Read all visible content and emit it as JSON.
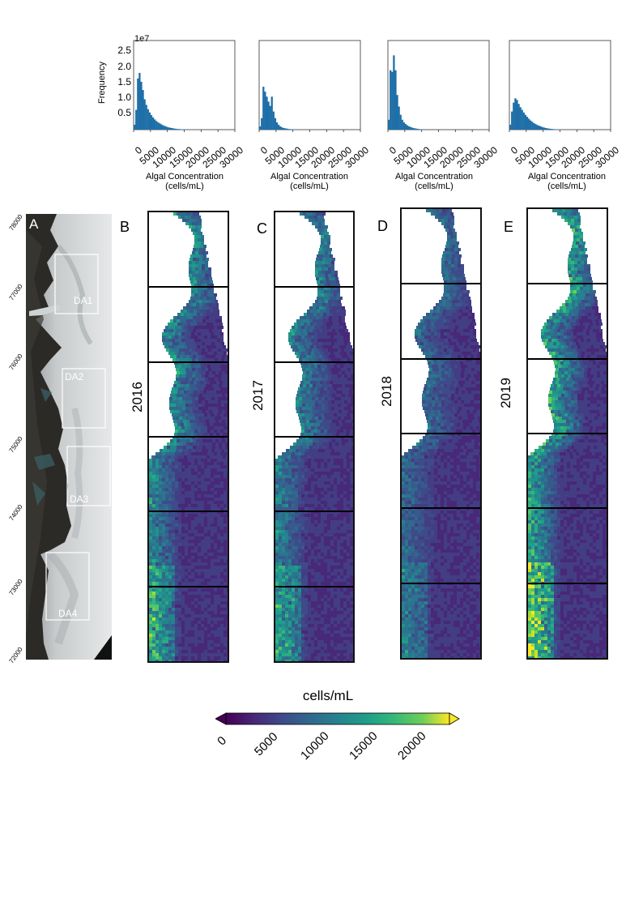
{
  "histograms": {
    "scale_label": "1e7",
    "ylabel": "Frequency",
    "xlabel_line1": "Algal Concentration",
    "xlabel_line2": "(cells/mL)",
    "yticks": [
      "2.5",
      "2.0",
      "1.5",
      "1.0",
      "0.5"
    ],
    "xticks": [
      "0",
      "5000",
      "10000",
      "15000",
      "20000",
      "25000",
      "30000"
    ],
    "bar_color": "#1f6fa8"
  },
  "chart_data": [
    {
      "type": "bar",
      "title": "",
      "xlabel": "Algal Concentration (cells/mL)",
      "ylabel": "Frequency",
      "xlim": [
        0,
        30000
      ],
      "ylim": [
        0,
        27000000.0
      ],
      "bin_width": 500,
      "bin_start": 0,
      "values": [
        0.15,
        0.6,
        1.55,
        1.72,
        1.45,
        1.2,
        0.92,
        0.75,
        0.62,
        0.52,
        0.44,
        0.37,
        0.31,
        0.26,
        0.22,
        0.19,
        0.16,
        0.13,
        0.11,
        0.09,
        0.07,
        0.06,
        0.05,
        0.04,
        0.03,
        0.025,
        0.02,
        0.015,
        0.012,
        0.01,
        0.008,
        0.006,
        0.005,
        0.004,
        0.003,
        0.002,
        0.002,
        0.001,
        0.001,
        0.001
      ]
    },
    {
      "type": "bar",
      "title": "",
      "xlabel": "Algal Concentration (cells/mL)",
      "ylabel": "",
      "xlim": [
        0,
        30000
      ],
      "ylim": [
        0,
        27000000.0
      ],
      "bin_width": 500,
      "bin_start": 0,
      "values": [
        0.1,
        0.35,
        1.3,
        1.15,
        1.0,
        0.85,
        0.72,
        1.0,
        0.55,
        0.35,
        0.22,
        0.15,
        0.1,
        0.07,
        0.05,
        0.04,
        0.03,
        0.02,
        0.015,
        0.01,
        0.008,
        0.006,
        0.004,
        0.003,
        0.002,
        0.001
      ]
    },
    {
      "type": "bar",
      "title": "",
      "xlabel": "Algal Concentration (cells/mL)",
      "ylabel": "",
      "xlim": [
        0,
        30000
      ],
      "ylim": [
        0,
        27000000.0
      ],
      "bin_width": 500,
      "bin_start": 0,
      "values": [
        0.3,
        1.8,
        1.75,
        2.25,
        1.8,
        1.05,
        0.7,
        0.45,
        0.3,
        0.22,
        0.17,
        0.13,
        0.1,
        0.08,
        0.06,
        0.045,
        0.035,
        0.025,
        0.018,
        0.012,
        0.008,
        0.005,
        0.003,
        0.002,
        0.001
      ]
    },
    {
      "type": "bar",
      "title": "",
      "xlabel": "Algal Concentration (cells/mL)",
      "ylabel": "",
      "xlim": [
        0,
        30000
      ],
      "ylim": [
        0,
        27000000.0
      ],
      "bin_width": 500,
      "bin_start": 0,
      "values": [
        0.15,
        0.55,
        0.82,
        0.95,
        0.9,
        0.78,
        0.68,
        0.6,
        0.52,
        0.45,
        0.39,
        0.33,
        0.28,
        0.24,
        0.2,
        0.17,
        0.14,
        0.12,
        0.1,
        0.08,
        0.065,
        0.05,
        0.04,
        0.032,
        0.025,
        0.02,
        0.015,
        0.012,
        0.009,
        0.007,
        0.005,
        0.004,
        0.003,
        0.002,
        0.001
      ]
    }
  ],
  "overview": {
    "label": "A",
    "yticks": [
      "78000",
      "77000",
      "76000",
      "75000",
      "74000",
      "73000",
      "72000"
    ],
    "boxes": [
      "DA1",
      "DA2",
      "DA3",
      "DA4"
    ]
  },
  "maps": [
    {
      "letter": "B",
      "year": "2016"
    },
    {
      "letter": "C",
      "year": "2017"
    },
    {
      "letter": "D",
      "year": "2018"
    },
    {
      "letter": "E",
      "year": "2019"
    }
  ],
  "colorbar": {
    "label": "cells/mL",
    "ticks": [
      "0",
      "5000",
      "10000",
      "15000",
      "20000"
    ],
    "colormap": "viridis",
    "range": [
      0,
      22500
    ]
  }
}
